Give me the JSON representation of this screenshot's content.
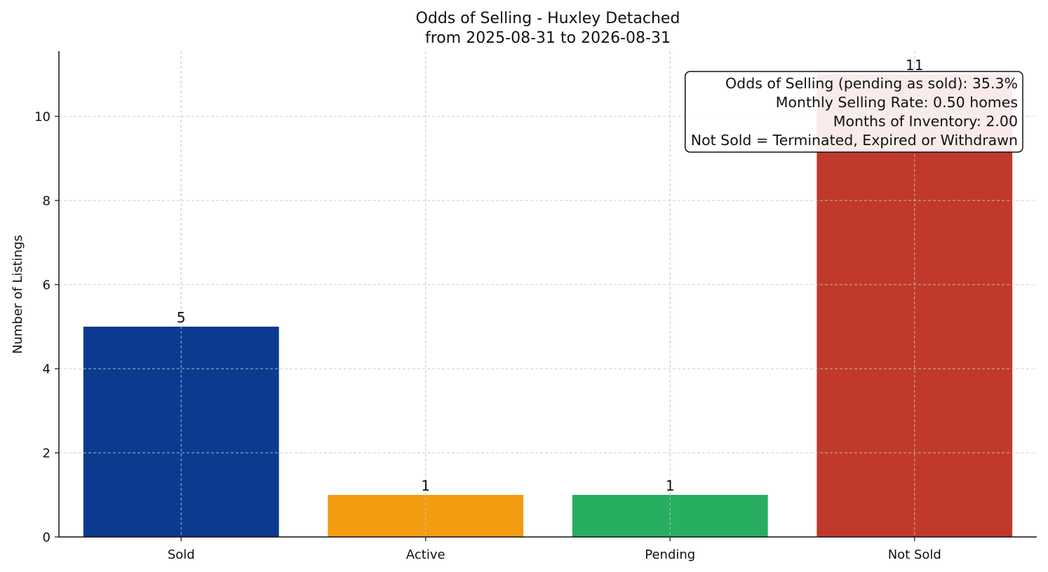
{
  "chart_data": {
    "type": "bar",
    "title": "Odds of Selling - Huxley Detached",
    "subtitle": "from 2025-08-31 to 2026-08-31",
    "xlabel": "",
    "ylabel": "Number of Listings",
    "categories": [
      "Sold",
      "Active",
      "Pending",
      "Not Sold"
    ],
    "values": [
      5,
      1,
      1,
      11
    ],
    "data_labels": [
      "5",
      "1",
      "1",
      "11"
    ],
    "colors": [
      "#0b3a8f",
      "#f39c12",
      "#27ae60",
      "#c0392b"
    ],
    "ylim": [
      0,
      11.55
    ],
    "yticks": [
      0,
      2,
      4,
      6,
      8,
      10
    ],
    "ytick_labels": [
      "0",
      "2",
      "4",
      "6",
      "8",
      "10"
    ],
    "grid": true,
    "annotation": {
      "placement": "top-right",
      "lines": [
        "Odds of Selling (pending as sold): 35.3%",
        "Monthly Selling Rate: 0.50 homes",
        "Months of Inventory: 2.00",
        "Not Sold = Terminated, Expired or Withdrawn"
      ]
    }
  }
}
